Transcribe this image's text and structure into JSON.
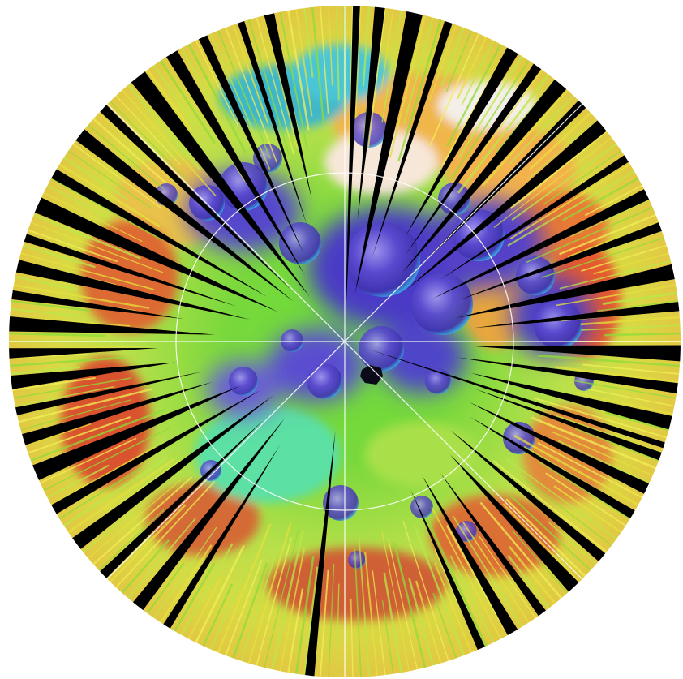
{
  "map": {
    "projection": "polar-stereographic",
    "colormap": [
      "#4b2fb8",
      "#3a6fe0",
      "#25c0e8",
      "#34d06a",
      "#8ee03c",
      "#e8e23a",
      "#f3a53a",
      "#e24a2c",
      "#f8f0f0"
    ],
    "background": "#ffffff",
    "gap_color": "#000000",
    "track_colors": [
      "#f2ef55",
      "#e6e03c",
      "#b9e84a",
      "#8edc38"
    ],
    "graticule_color": "#ffffff",
    "graticule_rings": 2,
    "graticule_meridians": 4
  }
}
